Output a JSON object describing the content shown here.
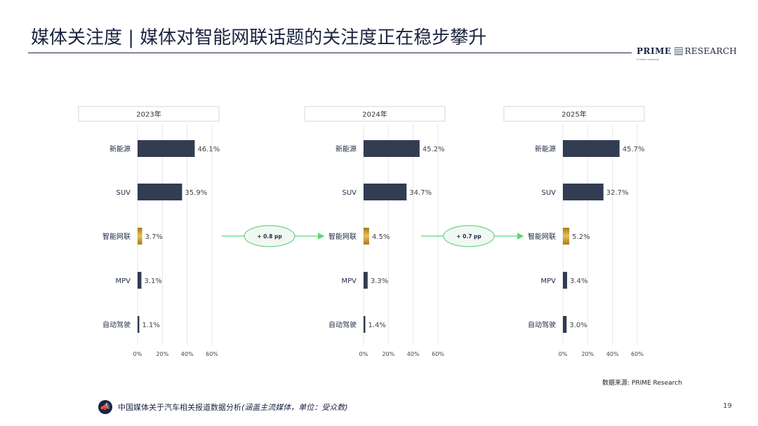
{
  "header": {
    "title": "媒体关注度 | 媒体对智能网联话题的关注度正在稳步攀升",
    "logo_primary": "PRIME",
    "logo_secondary": "RESEARCH",
    "logo_tagline": "a Cision company"
  },
  "chart_data": [
    {
      "type": "bar",
      "orientation": "horizontal",
      "title": "2023年",
      "categories": [
        "新能源",
        "SUV",
        "智能网联",
        "MPV",
        "自动驾驶"
      ],
      "values": [
        46.1,
        35.9,
        3.7,
        3.1,
        1.1
      ],
      "value_labels": [
        "46.1%",
        "35.9%",
        "3.7%",
        "3.1%",
        "1.1%"
      ],
      "xlim": [
        0,
        60
      ],
      "ticks": [
        "0%",
        "20%",
        "40%",
        "60%"
      ],
      "grid": true,
      "colors": [
        "#323c52",
        "#323c52",
        "#c99a2e",
        "#323c52",
        "#323c52"
      ]
    },
    {
      "type": "bar",
      "orientation": "horizontal",
      "title": "2024年",
      "categories": [
        "新能源",
        "SUV",
        "智能网联",
        "MPV",
        "自动驾驶"
      ],
      "values": [
        45.2,
        34.7,
        4.5,
        3.3,
        1.4
      ],
      "value_labels": [
        "45.2%",
        "34.7%",
        "4.5%",
        "3.3%",
        "1.4%"
      ],
      "xlim": [
        0,
        60
      ],
      "ticks": [
        "0%",
        "20%",
        "40%",
        "60%"
      ],
      "grid": true,
      "colors": [
        "#323c52",
        "#323c52",
        "#c99a2e",
        "#323c52",
        "#323c52"
      ]
    },
    {
      "type": "bar",
      "orientation": "horizontal",
      "title": "2025年",
      "categories": [
        "新能源",
        "SUV",
        "智能网联",
        "MPV",
        "自动驾驶"
      ],
      "values": [
        45.7,
        32.7,
        5.2,
        3.4,
        3.0
      ],
      "value_labels": [
        "45.7%",
        "32.7%",
        "5.2%",
        "3.4%",
        "3.0%"
      ],
      "xlim": [
        0,
        60
      ],
      "ticks": [
        "0%",
        "20%",
        "40%",
        "60%"
      ],
      "grid": true,
      "colors": [
        "#323c52",
        "#323c52",
        "#c99a2e",
        "#323c52",
        "#323c52"
      ]
    }
  ],
  "annotations": [
    {
      "label": "+ 0.8 pp",
      "from_chart": 0,
      "to_chart": 1,
      "arrow_color": "#5bd67a"
    },
    {
      "label": "+ 0.7 pp",
      "from_chart": 1,
      "to_chart": 2,
      "arrow_color": "#5bd67a"
    }
  ],
  "source": "数据来源: PRIME Research",
  "footer": {
    "text": "中国媒体关于汽车相关报道数据分析",
    "note": "(涵盖主流媒体，单位：受众数)",
    "icon": "megaphone-icon"
  },
  "page_number": "19"
}
